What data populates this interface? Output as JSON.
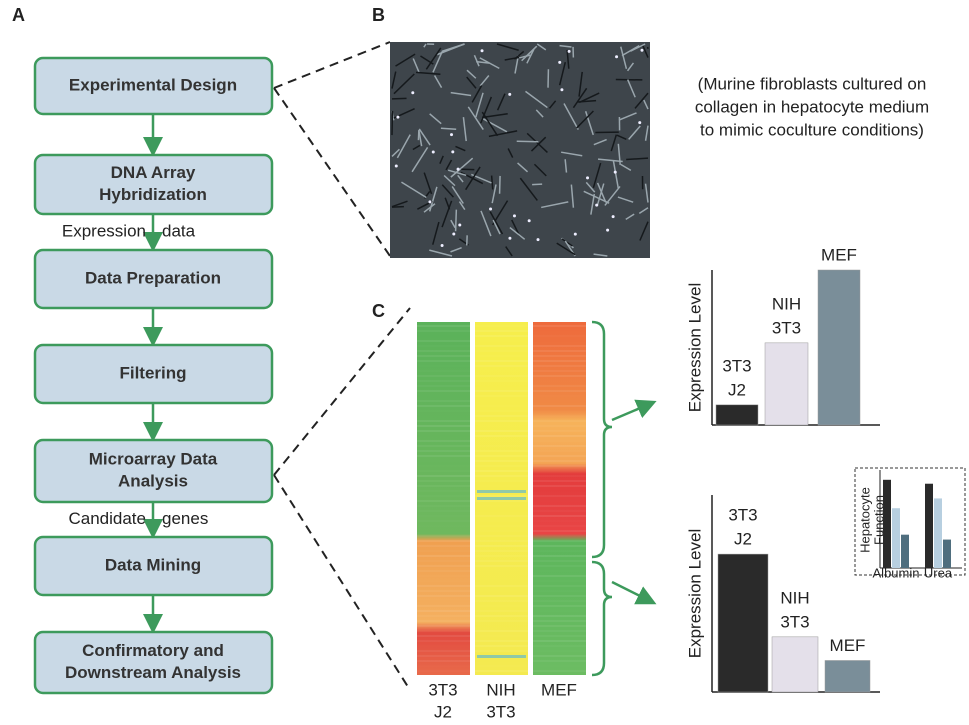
{
  "panel_labels": {
    "a": "A",
    "b": "B",
    "c": "C"
  },
  "flow": {
    "steps": [
      [
        "Experimental Design"
      ],
      [
        "DNA Array",
        "Hybridization"
      ],
      [
        "Data Preparation"
      ],
      [
        "Filtering"
      ],
      [
        "Microarray Data",
        "Analysis"
      ],
      [
        "Data Mining"
      ],
      [
        "Confirmatory and",
        "Downstream Analysis"
      ]
    ],
    "edge_labels": [
      {
        "after": 1,
        "left": "Expression",
        "right": "data"
      },
      {
        "after": 4,
        "left": "Candidate",
        "right": "genes"
      }
    ]
  },
  "image_caption": [
    "(Murine fibroblasts cultured on",
    "collagen in hepatocyte medium",
    "to mimic coculture conditions)"
  ],
  "heatmap_columns": [
    [
      "3T3",
      "J2"
    ],
    [
      "NIH",
      "3T3"
    ],
    [
      "MEF"
    ]
  ],
  "bar_charts": [
    {
      "type": "bar",
      "y_label": "Expression Level",
      "categories": [
        [
          "3T3",
          "J2"
        ],
        [
          "NIH",
          "3T3"
        ],
        [
          "MEF"
        ]
      ],
      "values": [
        13,
        53,
        100
      ],
      "colors": [
        "#2a2a2a",
        "#e4e0ea",
        "#7a8e99"
      ],
      "ylim": [
        0,
        100
      ]
    },
    {
      "type": "bar",
      "y_label": "Expression Level",
      "categories": [
        [
          "3T3",
          "J2"
        ],
        [
          "NIH",
          "3T3"
        ],
        [
          "MEF"
        ]
      ],
      "values": [
        70,
        28,
        16
      ],
      "colors": [
        "#2a2a2a",
        "#e4e0ea",
        "#7a8e99"
      ],
      "ylim": [
        0,
        100
      ]
    }
  ],
  "inset": {
    "type": "bar",
    "y_label": [
      "Hepatocyte",
      "Function"
    ],
    "categories": [
      "Albumin",
      "Urea"
    ],
    "series": [
      {
        "color": "#2a2a2a",
        "values": [
          90,
          86
        ]
      },
      {
        "color": "#b7cfe0",
        "values": [
          61,
          71
        ]
      },
      {
        "color": "#4f6e7e",
        "values": [
          34,
          29
        ]
      }
    ],
    "ylim": [
      0,
      100
    ]
  }
}
